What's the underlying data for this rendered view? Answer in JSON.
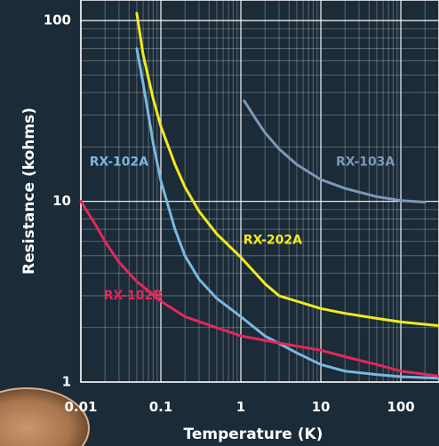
{
  "chart_data": {
    "type": "line",
    "title": "",
    "xlabel": "Temperature (K)",
    "ylabel": "Resistance (kohms)",
    "x_scale": "log",
    "y_scale": "log",
    "xlim": [
      0.01,
      300
    ],
    "ylim": [
      1,
      130
    ],
    "x_ticks": [
      {
        "value": 0.01,
        "label": "0.01"
      },
      {
        "value": 0.1,
        "label": "0.1"
      },
      {
        "value": 1,
        "label": "1"
      },
      {
        "value": 10,
        "label": "10"
      },
      {
        "value": 100,
        "label": "100"
      }
    ],
    "y_ticks": [
      {
        "value": 1,
        "label": "1"
      },
      {
        "value": 10,
        "label": "10"
      },
      {
        "value": 100,
        "label": "100"
      }
    ],
    "grid": true,
    "series": [
      {
        "name": "RX-102A",
        "color": "#7ab8e0",
        "label_at": [
          0.03,
          16.5
        ],
        "points": [
          [
            0.05,
            70
          ],
          [
            0.06,
            45
          ],
          [
            0.07,
            30
          ],
          [
            0.08,
            21
          ],
          [
            0.1,
            13
          ],
          [
            0.15,
            7
          ],
          [
            0.2,
            5
          ],
          [
            0.3,
            3.7
          ],
          [
            0.5,
            2.9
          ],
          [
            1,
            2.3
          ],
          [
            2,
            1.8
          ],
          [
            5,
            1.45
          ],
          [
            10,
            1.25
          ],
          [
            20,
            1.15
          ],
          [
            50,
            1.1
          ],
          [
            100,
            1.07
          ],
          [
            300,
            1.05
          ]
        ]
      },
      {
        "name": "RX-202A",
        "color": "#f2ea1e",
        "label_at": [
          2.5,
          6.1
        ],
        "points": [
          [
            0.05,
            110
          ],
          [
            0.06,
            65
          ],
          [
            0.07,
            48
          ],
          [
            0.08,
            37
          ],
          [
            0.1,
            26
          ],
          [
            0.15,
            16
          ],
          [
            0.2,
            12
          ],
          [
            0.3,
            8.8
          ],
          [
            0.5,
            6.6
          ],
          [
            1,
            4.9
          ],
          [
            2,
            3.5
          ],
          [
            3,
            3.0
          ],
          [
            5,
            2.8
          ],
          [
            10,
            2.55
          ],
          [
            20,
            2.4
          ],
          [
            50,
            2.25
          ],
          [
            100,
            2.15
          ],
          [
            300,
            2.05
          ]
        ]
      },
      {
        "name": "RX-102B",
        "color": "#e2285a",
        "label_at": [
          0.045,
          3.0
        ],
        "points": [
          [
            0.01,
            10
          ],
          [
            0.015,
            7.5
          ],
          [
            0.02,
            6
          ],
          [
            0.03,
            4.6
          ],
          [
            0.05,
            3.6
          ],
          [
            0.1,
            2.8
          ],
          [
            0.2,
            2.3
          ],
          [
            0.5,
            2.0
          ],
          [
            1,
            1.8
          ],
          [
            2,
            1.7
          ],
          [
            5,
            1.58
          ],
          [
            10,
            1.5
          ],
          [
            20,
            1.38
          ],
          [
            50,
            1.25
          ],
          [
            100,
            1.15
          ],
          [
            300,
            1.08
          ]
        ]
      },
      {
        "name": "RX-103A",
        "color": "#7b98b6",
        "label_at": [
          36,
          16.5
        ],
        "points": [
          [
            1.1,
            36
          ],
          [
            1.5,
            29
          ],
          [
            2,
            24
          ],
          [
            3,
            19.5
          ],
          [
            5,
            16
          ],
          [
            10,
            13.2
          ],
          [
            20,
            11.8
          ],
          [
            50,
            10.6
          ],
          [
            100,
            10.1
          ],
          [
            200,
            9.9
          ]
        ]
      }
    ]
  }
}
